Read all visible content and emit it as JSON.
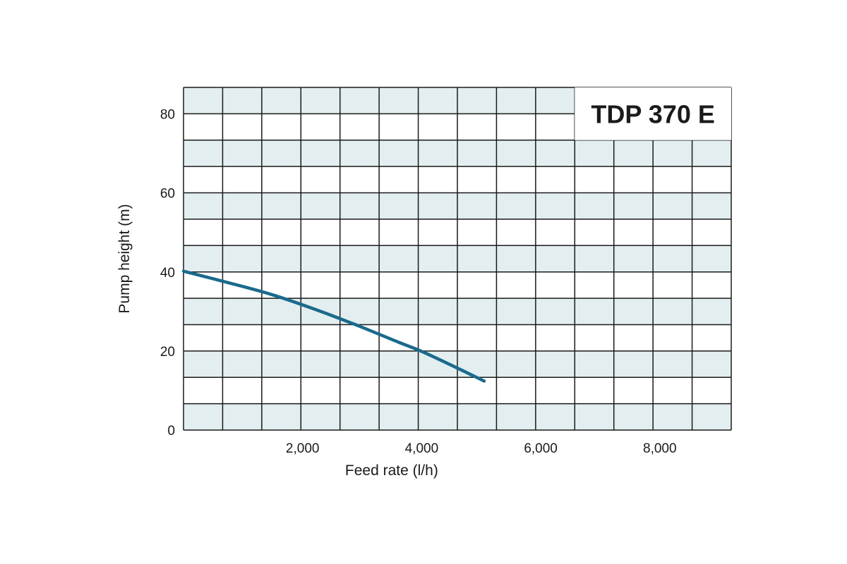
{
  "chart_data": {
    "type": "line",
    "title": "TDP 370 E",
    "xlabel": "Feed rate (l/h)",
    "ylabel": "Pump height (m)",
    "xlim": [
      0,
      9200
    ],
    "ylim": [
      0,
      86.7
    ],
    "x_ticks": [
      {
        "value": 2000,
        "label": "2,000"
      },
      {
        "value": 4000,
        "label": "4,000"
      },
      {
        "value": 6000,
        "label": "6,000"
      },
      {
        "value": 8000,
        "label": "8,000"
      }
    ],
    "y_ticks": [
      {
        "value": 0,
        "label": "0"
      },
      {
        "value": 20,
        "label": "20"
      },
      {
        "value": 40,
        "label": "40"
      },
      {
        "value": 60,
        "label": "60"
      },
      {
        "value": 80,
        "label": "80"
      }
    ],
    "grid": true,
    "grid_columns": 14,
    "grid_rows": 13,
    "series": [
      {
        "color": "#1a6a8c",
        "x": [
          0,
          800,
          1500,
          2200,
          2900,
          3600,
          4000,
          4500,
          5050
        ],
        "y": [
          40.2,
          37.1,
          34.2,
          30.6,
          26.6,
          22.3,
          19.9,
          16.4,
          12.4
        ]
      }
    ],
    "colors": {
      "band": "#e3eef0",
      "grid": "#1a1a1a",
      "background": "#ffffff"
    }
  }
}
